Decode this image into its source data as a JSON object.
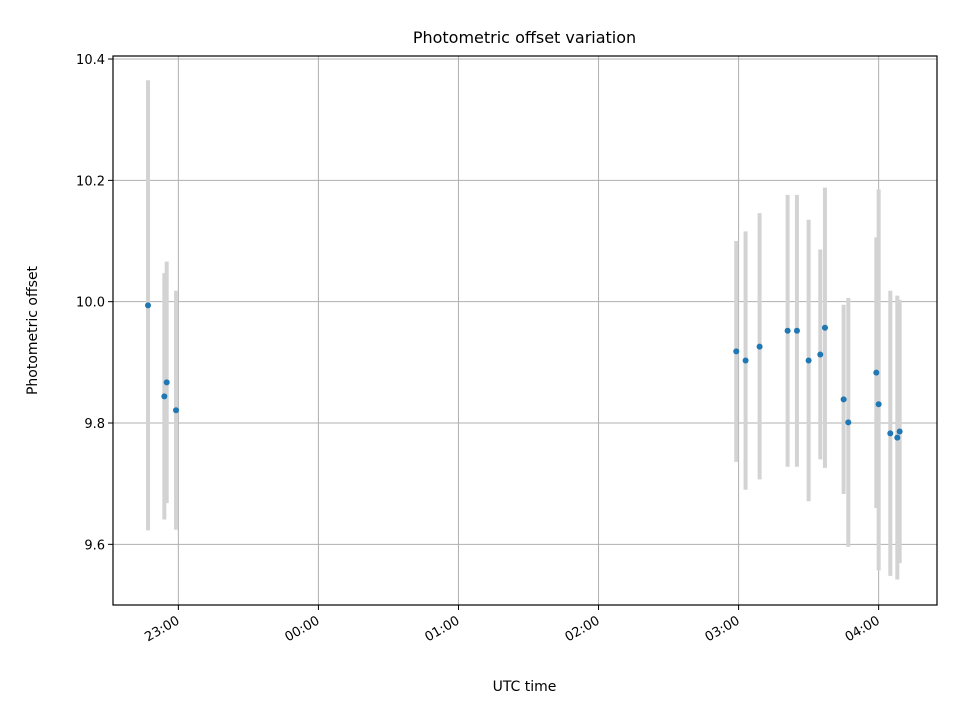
{
  "chart_data": {
    "type": "scatter",
    "title": "Photometric offset variation",
    "xlabel": "UTC time",
    "ylabel": "Photometric offset",
    "x_axis_type": "time",
    "xlim": [
      "22:32",
      "04:25"
    ],
    "ylim": [
      9.5,
      10.405
    ],
    "grid": true,
    "x_ticks": [
      "23:00",
      "00:00",
      "01:00",
      "02:00",
      "03:00",
      "04:00"
    ],
    "y_ticks": [
      9.6,
      9.8,
      10.0,
      10.2,
      10.4
    ],
    "y_tick_labels": [
      "9.6",
      "9.8",
      "10.0",
      "10.2",
      "10.4"
    ],
    "colors": {
      "point": "#1f77b4",
      "errorbar": "#d3d3d3",
      "grid": "#b0b0b0"
    },
    "points": [
      {
        "x": "22:47",
        "y": 9.994,
        "ylow": 9.623,
        "yhigh": 10.365
      },
      {
        "x": "22:54",
        "y": 9.844,
        "ylow": 9.641,
        "yhigh": 10.047
      },
      {
        "x": "22:55",
        "y": 9.867,
        "ylow": 9.668,
        "yhigh": 10.066
      },
      {
        "x": "22:59",
        "y": 9.821,
        "ylow": 9.624,
        "yhigh": 10.018
      },
      {
        "x": "02:59",
        "y": 9.918,
        "ylow": 9.736,
        "yhigh": 10.1
      },
      {
        "x": "03:03",
        "y": 9.903,
        "ylow": 9.69,
        "yhigh": 10.116
      },
      {
        "x": "03:09",
        "y": 9.926,
        "ylow": 9.707,
        "yhigh": 10.146
      },
      {
        "x": "03:21",
        "y": 9.952,
        "ylow": 9.728,
        "yhigh": 10.176
      },
      {
        "x": "03:25",
        "y": 9.952,
        "ylow": 9.728,
        "yhigh": 10.176
      },
      {
        "x": "03:30",
        "y": 9.903,
        "ylow": 9.671,
        "yhigh": 10.135
      },
      {
        "x": "03:35",
        "y": 9.913,
        "ylow": 9.74,
        "yhigh": 10.086
      },
      {
        "x": "03:37",
        "y": 9.957,
        "ylow": 9.726,
        "yhigh": 10.188
      },
      {
        "x": "03:45",
        "y": 9.839,
        "ylow": 9.683,
        "yhigh": 9.995
      },
      {
        "x": "03:47",
        "y": 9.801,
        "ylow": 9.596,
        "yhigh": 10.006
      },
      {
        "x": "03:59",
        "y": 9.883,
        "ylow": 9.66,
        "yhigh": 10.106
      },
      {
        "x": "04:00",
        "y": 9.831,
        "ylow": 9.557,
        "yhigh": 10.185
      },
      {
        "x": "04:05",
        "y": 9.783,
        "ylow": 9.548,
        "yhigh": 10.018
      },
      {
        "x": "04:08",
        "y": 9.776,
        "ylow": 9.542,
        "yhigh": 10.01
      },
      {
        "x": "04:09",
        "y": 9.786,
        "ylow": 9.569,
        "yhigh": 10.003
      }
    ]
  }
}
